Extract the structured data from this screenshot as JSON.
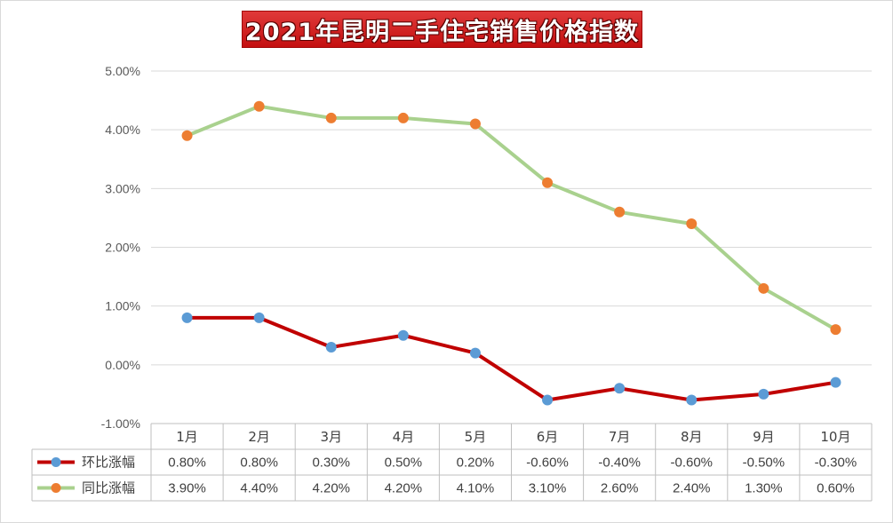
{
  "chart_data": {
    "type": "line",
    "title": "2021年昆明二手住宅销售价格指数",
    "categories": [
      "1月",
      "2月",
      "3月",
      "4月",
      "5月",
      "6月",
      "7月",
      "8月",
      "9月",
      "10月"
    ],
    "series": [
      {
        "name": "环比涨幅",
        "values": [
          0.8,
          0.8,
          0.3,
          0.5,
          0.2,
          -0.6,
          -0.4,
          -0.6,
          -0.5,
          -0.3
        ],
        "labels": [
          "0.80%",
          "0.80%",
          "0.30%",
          "0.50%",
          "0.20%",
          "-0.60%",
          "-0.40%",
          "-0.60%",
          "-0.50%",
          "-0.30%"
        ],
        "line_color": "#c00000",
        "marker_color": "#5b9bd5"
      },
      {
        "name": "同比涨幅",
        "values": [
          3.9,
          4.4,
          4.2,
          4.2,
          4.1,
          3.1,
          2.6,
          2.4,
          1.3,
          0.6
        ],
        "labels": [
          "3.90%",
          "4.40%",
          "4.20%",
          "4.20%",
          "4.10%",
          "3.10%",
          "2.60%",
          "2.40%",
          "1.30%",
          "0.60%"
        ],
        "line_color": "#a9d18e",
        "marker_color": "#ed7d31"
      }
    ],
    "ylim": [
      -1.0,
      5.0
    ],
    "yticks": [
      "5.00%",
      "4.00%",
      "3.00%",
      "2.00%",
      "1.00%",
      "0.00%",
      "-1.00%"
    ],
    "ytick_values": [
      5,
      4,
      3,
      2,
      1,
      0,
      -1
    ],
    "grid": true,
    "legend": "data table below chart"
  }
}
